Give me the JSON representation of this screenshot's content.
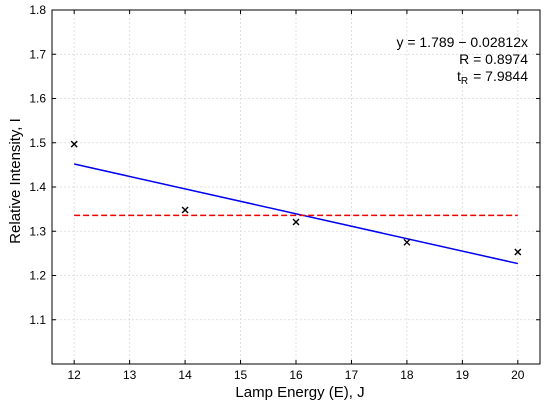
{
  "chart_data": {
    "type": "scatter",
    "title": "",
    "xlabel": "Lamp Energy (E), J",
    "ylabel": "Relative Intensity, I",
    "xlim": [
      11.6,
      20.4
    ],
    "ylim": [
      1.0,
      1.8
    ],
    "xticks": [
      12,
      13,
      14,
      15,
      16,
      17,
      18,
      19,
      20
    ],
    "yticks": [
      1.1,
      1.2,
      1.3,
      1.4,
      1.5,
      1.6,
      1.7,
      1.8
    ],
    "grid": true,
    "series": [
      {
        "kind": "scatter",
        "marker": "x",
        "color": "#000000",
        "x": [
          12,
          14,
          16,
          18,
          20
        ],
        "y": [
          1.497,
          1.348,
          1.321,
          1.275,
          1.253
        ]
      },
      {
        "kind": "line",
        "style": "solid",
        "color": "#0000ee",
        "x": [
          12,
          20
        ],
        "y": [
          1.452,
          1.227
        ]
      },
      {
        "kind": "line",
        "style": "dashed",
        "color": "#ee0000",
        "x": [
          12,
          20
        ],
        "y": [
          1.336,
          1.336
        ]
      }
    ],
    "annotations": {
      "equation": "y = 1.789 − 0.02812x",
      "r_value": "R = 0.8974",
      "t_symbol": "t",
      "t_subscript": "R",
      "t_value": "= 7.9844",
      "placement": "top-right"
    }
  }
}
